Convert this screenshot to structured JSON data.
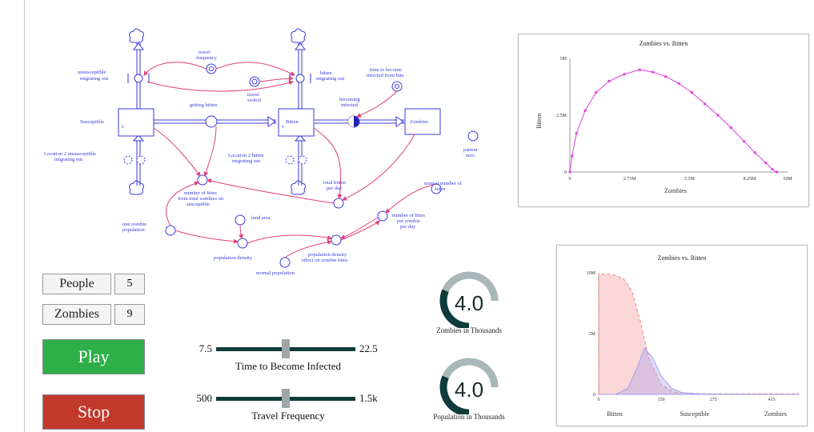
{
  "diagram": {
    "labels": {
      "unsusceptible_migrating_out": "unsusceptible\nmigrating out",
      "travel_frequency": "travel\nfrequency",
      "bitten_migrating_out": "bitten\nmigrating out",
      "time_to_become_infected": "time to become\ninfected from bite",
      "susceptible": "Susceptible",
      "getting_bitten": "getting bitten",
      "travel_switch": "travel\nswitch",
      "becoming_infected": "becoming\ninfected",
      "bitten": "Bitten",
      "zombies": "Zombies",
      "patient_zero": "patient\nzero",
      "location2_unsusceptible": "Location 2 unsusceptible\nmigrating out",
      "location2_bitten": "Location 2 bitten\nmigrating out",
      "total_bitten_per_day": "total bitten\nper day",
      "normal_number_of_bites": "normal number of\nbites",
      "number_of_bites_from_total": "number of bites\nfrom total zombies on\nsusceptible",
      "number_of_bites_per_zombie": "number of bites\nper zombie\nper day",
      "one_zombie_population": "one zombie\npopulation",
      "land_area": "land area",
      "population_density": "population density",
      "population_density_effect": "population density\neffect on zombie bites",
      "normal_population_density": "normal population\ndensity"
    },
    "stock_value_susceptible": "0",
    "stock_value_bitten": "0"
  },
  "chart1_title": "Zombies vs. Bitten",
  "chart2_title": "Zombies vs. Bitten",
  "chart_data": [
    {
      "type": "scatter",
      "title": "Zombies vs. Bitten",
      "xlabel": "Zombies",
      "ylabel": "Bitten",
      "xlim": [
        0,
        10000000
      ],
      "ylim": [
        0,
        5000000
      ],
      "x_ticks": [
        "0",
        "2.75M",
        "5.5M",
        "8.25M",
        "10M"
      ],
      "y_ticks": [
        "0",
        "2.5M",
        "5M"
      ],
      "color": "#e040e0",
      "x": [
        0,
        100000,
        300000,
        700000,
        1200000,
        1800000,
        2500000,
        3200000,
        3800000,
        4400000,
        5000000,
        5600000,
        6200000,
        6800000,
        7400000,
        8000000,
        8500000,
        9000000,
        9300000,
        9500000
      ],
      "y": [
        0,
        700000,
        1700000,
        2700000,
        3500000,
        4000000,
        4300000,
        4500000,
        4400000,
        4200000,
        3900000,
        3500000,
        3000000,
        2500000,
        1950000,
        1350000,
        850000,
        400000,
        120000,
        0
      ]
    },
    {
      "type": "area",
      "title": "Zombies vs. Bitten",
      "ylim": [
        0,
        10000000
      ],
      "y_ticks": [
        "0",
        "5M",
        "10M"
      ],
      "x_ticks": [
        "0",
        "150",
        "275",
        "415"
      ],
      "categories": [
        "Bitten",
        "Susceptible",
        "Zombies"
      ],
      "grid": false,
      "series": [
        {
          "color": "#f08a8a",
          "x": [
            0,
            20,
            40,
            60,
            80,
            100,
            120,
            150,
            180,
            220,
            275,
            350,
            415,
            480
          ],
          "values": [
            9900000,
            9900000,
            9800000,
            9500000,
            8500000,
            6000000,
            3000000,
            800000,
            200000,
            80000,
            50000,
            50000,
            50000,
            50000
          ]
        },
        {
          "color": "#a0a0f0",
          "x": [
            0,
            40,
            70,
            90,
            110,
            130,
            150,
            175,
            200,
            240,
            480
          ],
          "values": [
            0,
            0,
            500000,
            2000000,
            3800000,
            3000000,
            1500000,
            500000,
            150000,
            30000,
            0
          ]
        }
      ]
    }
  ],
  "controls": {
    "people_label": "People",
    "people_value": "5",
    "zombies_label": "Zombies",
    "zombies_value": "9",
    "play_label": "Play",
    "stop_label": "Stop"
  },
  "sliders": [
    {
      "min": "7.5",
      "max": "22.5",
      "title": "Time to Become Infected",
      "fraction": 0.5
    },
    {
      "min": "500",
      "max": "1.5k",
      "title": "Travel Frequency",
      "fraction": 0.5
    }
  ],
  "gauges": [
    {
      "value": "4.0",
      "caption": "Zombies in Thousands",
      "fraction": 0.42
    },
    {
      "value": "4.0",
      "caption": "Population in Thousands",
      "fraction": 0.42
    }
  ],
  "colors": {
    "diagram": "#3a3adb",
    "link": "#e0407a",
    "gauge_fill": "#0f3b3b",
    "gauge_rest": "#a9b7b8",
    "play": "#2eaf4a",
    "stop": "#c0392b"
  }
}
